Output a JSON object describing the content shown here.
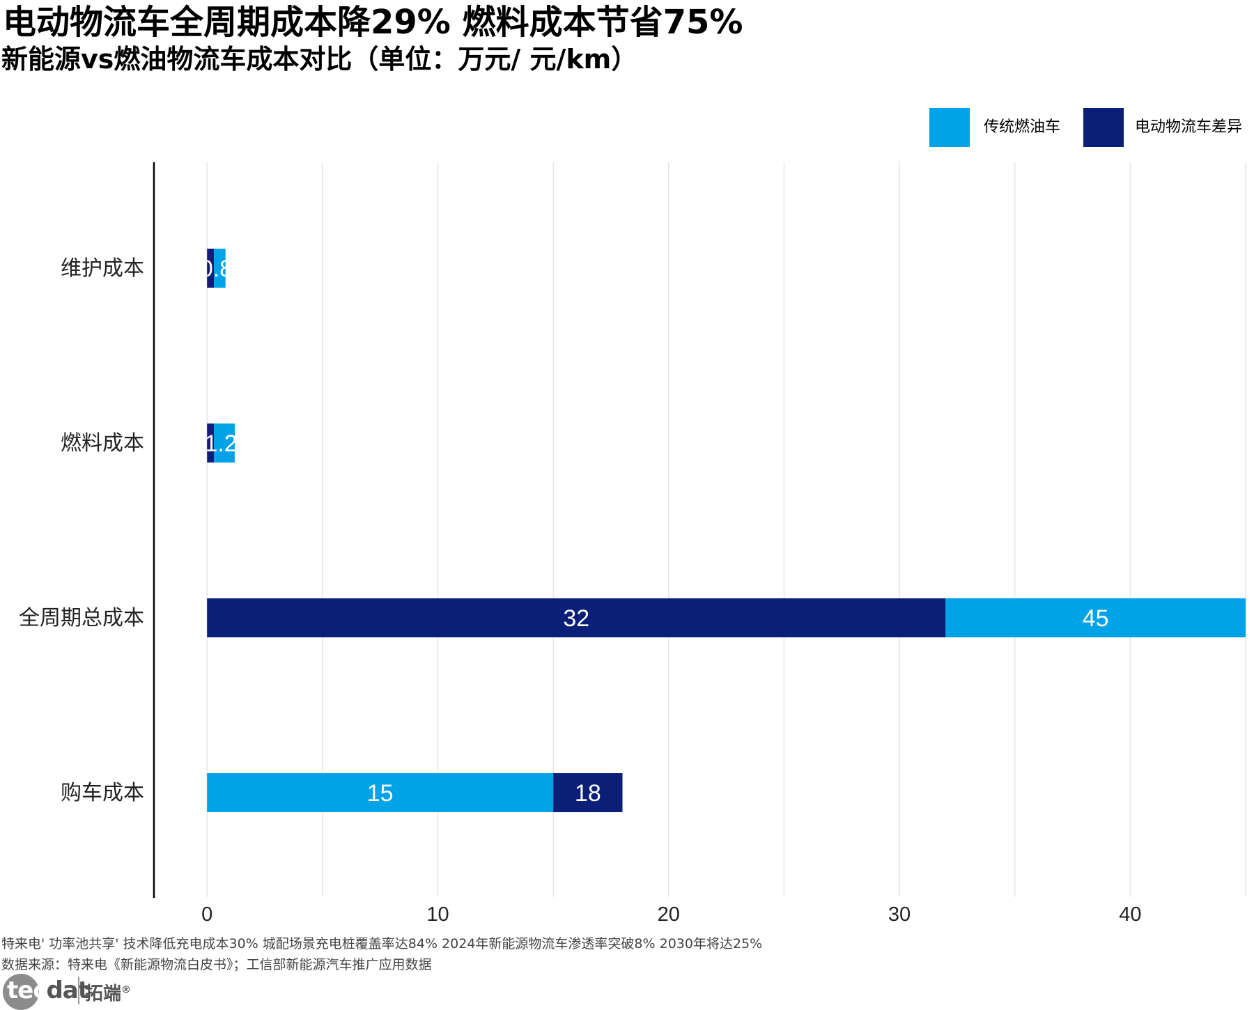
{
  "header": {
    "title": "电动物流车全周期成本降29%  燃料成本节省75%",
    "subtitle": "新能源vs燃油物流车成本对比（单位：万元/ 元/km）"
  },
  "legend": [
    {
      "label": "传统燃油车",
      "color": "#00a2e8"
    },
    {
      "label": "电动物流车差异",
      "color": "#0a1f78"
    }
  ],
  "chart_data": {
    "type": "bar",
    "orientation": "horizontal",
    "stacked": true,
    "categories": [
      "维护成本",
      "燃料成本",
      "全周期总成本",
      "购车成本"
    ],
    "bars": [
      {
        "category": "维护成本",
        "segments": [
          {
            "series": "电动物流车差异",
            "start": 0,
            "end": 0.3,
            "label": ""
          },
          {
            "series": "传统燃油车",
            "start": 0.3,
            "end": 0.8,
            "label": "0.8"
          }
        ]
      },
      {
        "category": "燃料成本",
        "segments": [
          {
            "series": "电动物流车差异",
            "start": 0,
            "end": 0.3,
            "label": ""
          },
          {
            "series": "传统燃油车",
            "start": 0.3,
            "end": 1.2,
            "label": "1.2"
          }
        ]
      },
      {
        "category": "全周期总成本",
        "segments": [
          {
            "series": "电动物流车差异",
            "start": 0,
            "end": 32,
            "label": "32"
          },
          {
            "series": "传统燃油车",
            "start": 32,
            "end": 45,
            "label": "45"
          }
        ]
      },
      {
        "category": "购车成本",
        "segments": [
          {
            "series": "传统燃油车",
            "start": 0,
            "end": 15,
            "label": "15"
          },
          {
            "series": "电动物流车差异",
            "start": 15,
            "end": 18,
            "label": "18"
          }
        ]
      }
    ],
    "xticks": [
      0,
      10,
      20,
      30,
      40
    ],
    "xlim": [
      -2.3,
      45
    ],
    "grid": true,
    "legend_position": "top-right",
    "colors": {
      "传统燃油车": "#00a2e8",
      "电动物流车差异": "#0a1f78",
      "grid": "#e6e6e6"
    }
  },
  "footer": {
    "note": "特来电' 功率池共享' 技术降低充电成本30%  城配场景充电桩覆盖率达84%  2024年新能源物流车渗透率突破8%  2030年将达25%",
    "source": "数据来源：特来电《新能源物流白皮书》；工信部新能源汽车推广应用数据"
  },
  "logo": {
    "latin_a": "tec",
    "latin_b": "dat",
    "cn": "拓端",
    "mark": "®"
  }
}
